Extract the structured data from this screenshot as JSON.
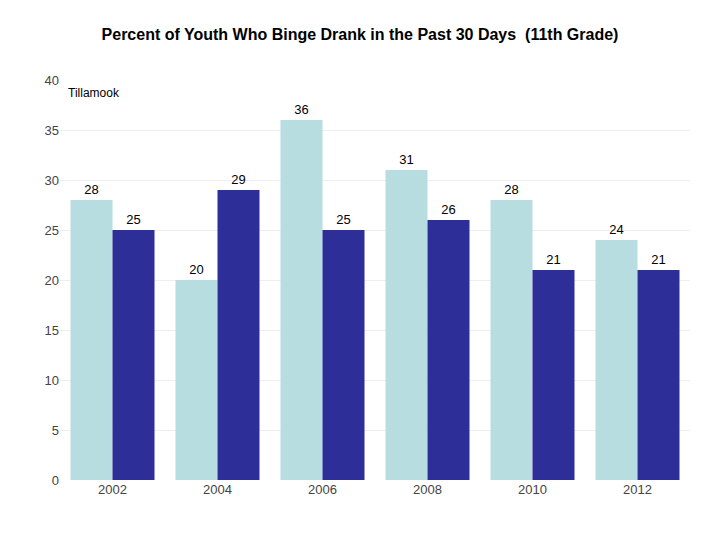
{
  "chart_data": {
    "type": "bar",
    "title": "Percent of Youth Who Binge Drank in the Past 30 Days  (11th Grade)",
    "categories": [
      "2002",
      "2004",
      "2006",
      "2008",
      "2010",
      "2012"
    ],
    "series": [
      {
        "name": "Tillamook",
        "color": "#b8dde0",
        "values": [
          28,
          20,
          36,
          31,
          28,
          24
        ]
      },
      {
        "color": "#2e2e99",
        "values": [
          25,
          29,
          25,
          26,
          21,
          21
        ]
      }
    ],
    "ylim": [
      0,
      40
    ],
    "yticks": [
      0,
      5,
      10,
      15,
      20,
      25,
      30,
      35,
      40
    ],
    "grid": true,
    "data_labels": true
  }
}
